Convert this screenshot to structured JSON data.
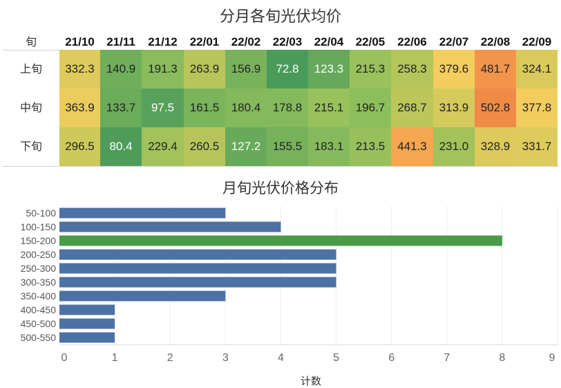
{
  "chart_data": [
    {
      "type": "heatmap",
      "title": "分月各旬光伏均价",
      "corner_label": "旬",
      "columns": [
        "21/10",
        "21/11",
        "21/12",
        "22/01",
        "22/02",
        "22/03",
        "22/04",
        "22/05",
        "22/06",
        "22/07",
        "22/08",
        "22/09"
      ],
      "rows": [
        {
          "label": "上旬",
          "values": [
            "332.3",
            "140.9",
            "191.3",
            "263.9",
            "156.9",
            "72.8",
            "123.3",
            "215.3",
            "258.3",
            "379.6",
            "481.7",
            "324.1"
          ]
        },
        {
          "label": "中旬",
          "values": [
            "363.9",
            "133.7",
            "97.5",
            "161.5",
            "180.4",
            "178.8",
            "215.1",
            "196.7",
            "268.7",
            "313.9",
            "502.8",
            "377.8"
          ]
        },
        {
          "label": "下旬",
          "values": [
            "296.5",
            "80.4",
            "229.4",
            "260.5",
            "127.2",
            "155.5",
            "183.1",
            "213.5",
            "441.3",
            "231.0",
            "328.9",
            "331.7"
          ]
        }
      ],
      "colors": {
        "low": "#4a9a5a",
        "mid_low": "#8fbf5c",
        "mid": "#cfc95a",
        "mid_high": "#f3cd5e",
        "high": "#f5a14c",
        "max": "#f08a47"
      }
    },
    {
      "type": "bar",
      "orientation": "horizontal",
      "title": "月旬光伏价格分布",
      "categories": [
        "50-100",
        "100-150",
        "150-200",
        "200-250",
        "250-300",
        "300-350",
        "350-400",
        "400-450",
        "450-500",
        "500-550"
      ],
      "values": [
        3,
        4,
        8,
        5,
        5,
        5,
        3,
        1,
        1,
        1
      ],
      "highlight_category": "150-200",
      "xlabel": "计数",
      "ylabel": "",
      "xlim": [
        0,
        9
      ],
      "xticks": [
        "0",
        "1",
        "2",
        "3",
        "4",
        "5",
        "6",
        "7",
        "8",
        "9"
      ],
      "colors": {
        "bar": "#4c72a4",
        "highlight": "#4a9a48",
        "grid": "#eeeeee"
      }
    }
  ]
}
